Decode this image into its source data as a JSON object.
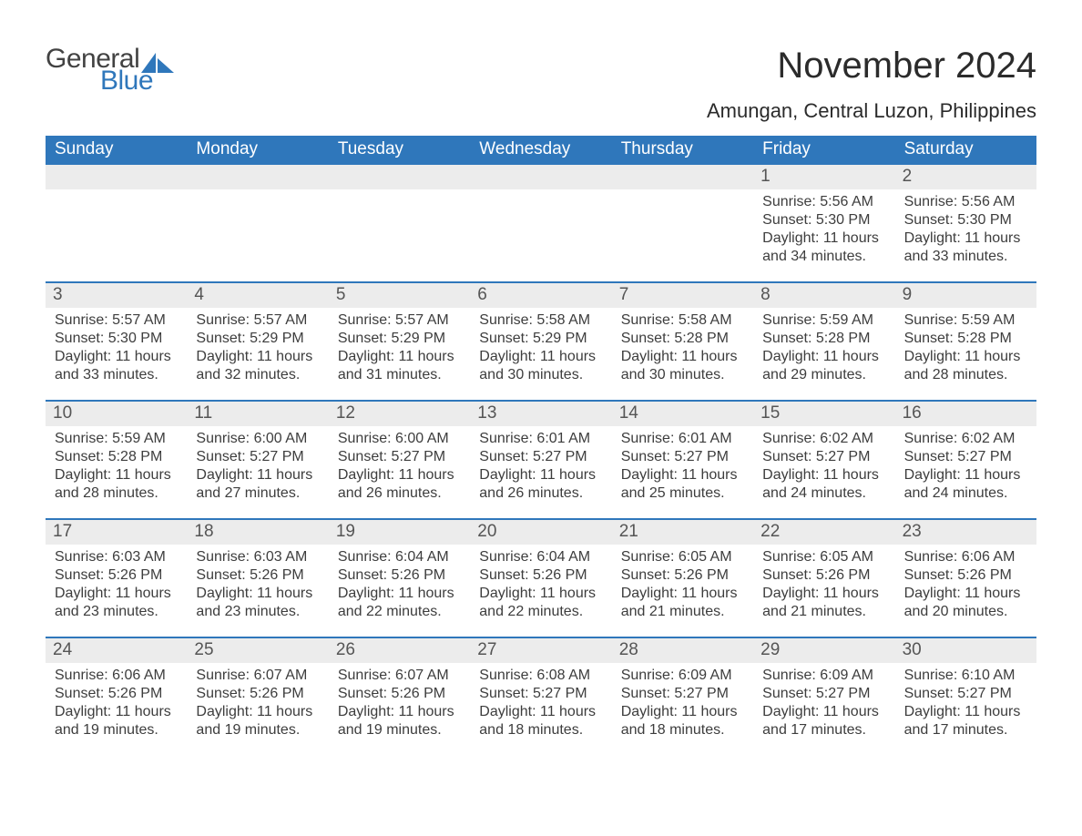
{
  "logo": {
    "word1": "General",
    "word2": "Blue"
  },
  "title": "November 2024",
  "location": "Amungan, Central Luzon, Philippines",
  "colors": {
    "brand_blue": "#2f77bb",
    "daynum_bg": "#ececec",
    "background": "#ffffff",
    "text_dark": "#2f2f2f"
  },
  "daysOfWeek": [
    "Sunday",
    "Monday",
    "Tuesday",
    "Wednesday",
    "Thursday",
    "Friday",
    "Saturday"
  ],
  "weeks": [
    [
      {
        "empty": true
      },
      {
        "empty": true
      },
      {
        "empty": true
      },
      {
        "empty": true
      },
      {
        "empty": true
      },
      {
        "day": 1,
        "sunrise": "5:56 AM",
        "sunset": "5:30 PM",
        "daylight": "11 hours and 34 minutes."
      },
      {
        "day": 2,
        "sunrise": "5:56 AM",
        "sunset": "5:30 PM",
        "daylight": "11 hours and 33 minutes."
      }
    ],
    [
      {
        "day": 3,
        "sunrise": "5:57 AM",
        "sunset": "5:30 PM",
        "daylight": "11 hours and 33 minutes."
      },
      {
        "day": 4,
        "sunrise": "5:57 AM",
        "sunset": "5:29 PM",
        "daylight": "11 hours and 32 minutes."
      },
      {
        "day": 5,
        "sunrise": "5:57 AM",
        "sunset": "5:29 PM",
        "daylight": "11 hours and 31 minutes."
      },
      {
        "day": 6,
        "sunrise": "5:58 AM",
        "sunset": "5:29 PM",
        "daylight": "11 hours and 30 minutes."
      },
      {
        "day": 7,
        "sunrise": "5:58 AM",
        "sunset": "5:28 PM",
        "daylight": "11 hours and 30 minutes."
      },
      {
        "day": 8,
        "sunrise": "5:59 AM",
        "sunset": "5:28 PM",
        "daylight": "11 hours and 29 minutes."
      },
      {
        "day": 9,
        "sunrise": "5:59 AM",
        "sunset": "5:28 PM",
        "daylight": "11 hours and 28 minutes."
      }
    ],
    [
      {
        "day": 10,
        "sunrise": "5:59 AM",
        "sunset": "5:28 PM",
        "daylight": "11 hours and 28 minutes."
      },
      {
        "day": 11,
        "sunrise": "6:00 AM",
        "sunset": "5:27 PM",
        "daylight": "11 hours and 27 minutes."
      },
      {
        "day": 12,
        "sunrise": "6:00 AM",
        "sunset": "5:27 PM",
        "daylight": "11 hours and 26 minutes."
      },
      {
        "day": 13,
        "sunrise": "6:01 AM",
        "sunset": "5:27 PM",
        "daylight": "11 hours and 26 minutes."
      },
      {
        "day": 14,
        "sunrise": "6:01 AM",
        "sunset": "5:27 PM",
        "daylight": "11 hours and 25 minutes."
      },
      {
        "day": 15,
        "sunrise": "6:02 AM",
        "sunset": "5:27 PM",
        "daylight": "11 hours and 24 minutes."
      },
      {
        "day": 16,
        "sunrise": "6:02 AM",
        "sunset": "5:27 PM",
        "daylight": "11 hours and 24 minutes."
      }
    ],
    [
      {
        "day": 17,
        "sunrise": "6:03 AM",
        "sunset": "5:26 PM",
        "daylight": "11 hours and 23 minutes."
      },
      {
        "day": 18,
        "sunrise": "6:03 AM",
        "sunset": "5:26 PM",
        "daylight": "11 hours and 23 minutes."
      },
      {
        "day": 19,
        "sunrise": "6:04 AM",
        "sunset": "5:26 PM",
        "daylight": "11 hours and 22 minutes."
      },
      {
        "day": 20,
        "sunrise": "6:04 AM",
        "sunset": "5:26 PM",
        "daylight": "11 hours and 22 minutes."
      },
      {
        "day": 21,
        "sunrise": "6:05 AM",
        "sunset": "5:26 PM",
        "daylight": "11 hours and 21 minutes."
      },
      {
        "day": 22,
        "sunrise": "6:05 AM",
        "sunset": "5:26 PM",
        "daylight": "11 hours and 21 minutes."
      },
      {
        "day": 23,
        "sunrise": "6:06 AM",
        "sunset": "5:26 PM",
        "daylight": "11 hours and 20 minutes."
      }
    ],
    [
      {
        "day": 24,
        "sunrise": "6:06 AM",
        "sunset": "5:26 PM",
        "daylight": "11 hours and 19 minutes."
      },
      {
        "day": 25,
        "sunrise": "6:07 AM",
        "sunset": "5:26 PM",
        "daylight": "11 hours and 19 minutes."
      },
      {
        "day": 26,
        "sunrise": "6:07 AM",
        "sunset": "5:26 PM",
        "daylight": "11 hours and 19 minutes."
      },
      {
        "day": 27,
        "sunrise": "6:08 AM",
        "sunset": "5:27 PM",
        "daylight": "11 hours and 18 minutes."
      },
      {
        "day": 28,
        "sunrise": "6:09 AM",
        "sunset": "5:27 PM",
        "daylight": "11 hours and 18 minutes."
      },
      {
        "day": 29,
        "sunrise": "6:09 AM",
        "sunset": "5:27 PM",
        "daylight": "11 hours and 17 minutes."
      },
      {
        "day": 30,
        "sunrise": "6:10 AM",
        "sunset": "5:27 PM",
        "daylight": "11 hours and 17 minutes."
      }
    ]
  ],
  "labels": {
    "sunrise": "Sunrise: ",
    "sunset": "Sunset: ",
    "daylight": "Daylight: "
  }
}
